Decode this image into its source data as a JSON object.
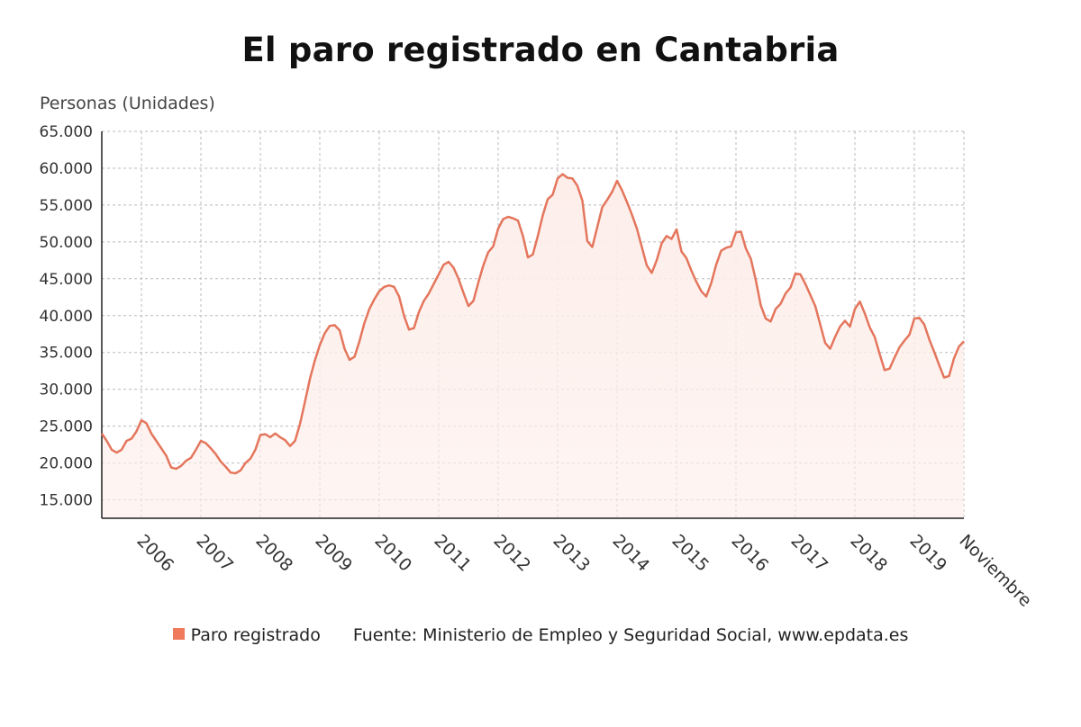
{
  "chart_data": {
    "type": "area",
    "title": "El paro registrado en Cantabria",
    "ylabel": "Personas (Unidades)",
    "xlabel": "",
    "ylim": [
      12500,
      65000
    ],
    "yticks": [
      15000,
      20000,
      25000,
      30000,
      35000,
      40000,
      45000,
      50000,
      55000,
      60000,
      65000
    ],
    "ytick_labels": [
      "15.000",
      "20.000",
      "25.000",
      "30.000",
      "35.000",
      "40.000",
      "45.000",
      "50.000",
      "55.000",
      "60.000",
      "65.000"
    ],
    "xtick_labels": [
      "2006",
      "2007",
      "2008",
      "2009",
      "2010",
      "2011",
      "2012",
      "2013",
      "2014",
      "2015",
      "2016",
      "2017",
      "2018",
      "2019",
      "Noviembre"
    ],
    "xrange": [
      "2005-05",
      "2019-11"
    ],
    "grid": true,
    "line_color": "#e4765d",
    "fill_color": "#fdeeea",
    "series": [
      {
        "name": "Paro registrado",
        "x": [
          "2005-05",
          "2005-06",
          "2005-07",
          "2005-08",
          "2005-09",
          "2005-10",
          "2005-11",
          "2005-12",
          "2006-01",
          "2006-02",
          "2006-03",
          "2006-04",
          "2006-05",
          "2006-06",
          "2006-07",
          "2006-08",
          "2006-09",
          "2006-10",
          "2006-11",
          "2006-12",
          "2007-01",
          "2007-02",
          "2007-03",
          "2007-04",
          "2007-05",
          "2007-06",
          "2007-07",
          "2007-08",
          "2007-09",
          "2007-10",
          "2007-11",
          "2007-12",
          "2008-01",
          "2008-02",
          "2008-03",
          "2008-04",
          "2008-05",
          "2008-06",
          "2008-07",
          "2008-08",
          "2008-09",
          "2008-10",
          "2008-11",
          "2008-12",
          "2009-01",
          "2009-02",
          "2009-03",
          "2009-04",
          "2009-05",
          "2009-06",
          "2009-07",
          "2009-08",
          "2009-09",
          "2009-10",
          "2009-11",
          "2009-12",
          "2010-01",
          "2010-02",
          "2010-03",
          "2010-04",
          "2010-05",
          "2010-06",
          "2010-07",
          "2010-08",
          "2010-09",
          "2010-10",
          "2010-11",
          "2010-12",
          "2011-01",
          "2011-02",
          "2011-03",
          "2011-04",
          "2011-05",
          "2011-06",
          "2011-07",
          "2011-08",
          "2011-09",
          "2011-10",
          "2011-11",
          "2011-12",
          "2012-01",
          "2012-02",
          "2012-03",
          "2012-04",
          "2012-05",
          "2012-06",
          "2012-07",
          "2012-08",
          "2012-09",
          "2012-10",
          "2012-11",
          "2012-12",
          "2013-01",
          "2013-02",
          "2013-03",
          "2013-04",
          "2013-05",
          "2013-06",
          "2013-07",
          "2013-08",
          "2013-09",
          "2013-10",
          "2013-11",
          "2013-12",
          "2014-01",
          "2014-02",
          "2014-03",
          "2014-04",
          "2014-05",
          "2014-06",
          "2014-07",
          "2014-08",
          "2014-09",
          "2014-10",
          "2014-11",
          "2014-12",
          "2015-01",
          "2015-02",
          "2015-03",
          "2015-04",
          "2015-05",
          "2015-06",
          "2015-07",
          "2015-08",
          "2015-09",
          "2015-10",
          "2015-11",
          "2015-12",
          "2016-01",
          "2016-02",
          "2016-03",
          "2016-04",
          "2016-05",
          "2016-06",
          "2016-07",
          "2016-08",
          "2016-09",
          "2016-10",
          "2016-11",
          "2016-12",
          "2017-01",
          "2017-02",
          "2017-03",
          "2017-04",
          "2017-05",
          "2017-06",
          "2017-07",
          "2017-08",
          "2017-09",
          "2017-10",
          "2017-11",
          "2017-12",
          "2018-01",
          "2018-02",
          "2018-03",
          "2018-04",
          "2018-05",
          "2018-06",
          "2018-07",
          "2018-08",
          "2018-09",
          "2018-10",
          "2018-11",
          "2018-12",
          "2019-01",
          "2019-02",
          "2019-03",
          "2019-04",
          "2019-05",
          "2019-06",
          "2019-07",
          "2019-08",
          "2019-09",
          "2019-10",
          "2019-11"
        ],
        "values": [
          24000,
          23000,
          21800,
          21400,
          21800,
          23000,
          23300,
          24300,
          25800,
          25400,
          24000,
          23000,
          22000,
          21000,
          19400,
          19200,
          19600,
          20300,
          20700,
          21800,
          23000,
          22700,
          22000,
          21200,
          20200,
          19500,
          18700,
          18600,
          19000,
          20000,
          20600,
          21800,
          23800,
          23900,
          23500,
          24000,
          23500,
          23100,
          22300,
          23000,
          25300,
          28300,
          31400,
          33900,
          36000,
          37600,
          38600,
          38700,
          38000,
          35500,
          34000,
          34400,
          36500,
          39000,
          40900,
          42200,
          43300,
          43900,
          44100,
          43900,
          42600,
          40000,
          38100,
          38300,
          40500,
          42000,
          43000,
          44300,
          45600,
          46900,
          47300,
          46500,
          45000,
          43100,
          41300,
          42000,
          44500,
          46800,
          48600,
          49400,
          51800,
          53100,
          53400,
          53200,
          52900,
          50800,
          47900,
          48300,
          50800,
          53600,
          55800,
          56400,
          58600,
          59200,
          58700,
          58600,
          57600,
          55600,
          50100,
          49300,
          52000,
          54700,
          55700,
          56800,
          58300,
          57000,
          55400,
          53700,
          51800,
          49300,
          46800,
          45800,
          47500,
          49800,
          50800,
          50400,
          51700,
          48700,
          47800,
          46100,
          44600,
          43300,
          42600,
          44400,
          46900,
          48800,
          49200,
          49400,
          51300,
          51400,
          49100,
          47700,
          44800,
          41400,
          39600,
          39200,
          40900,
          41600,
          43000,
          43800,
          45700,
          45600,
          44300,
          42800,
          41300,
          38800,
          36300,
          35500,
          37100,
          38500,
          39300,
          38500,
          40900,
          41900,
          40300,
          38400,
          37100,
          34800,
          32600,
          32800,
          34300,
          35700,
          36600,
          37400,
          39600,
          39700,
          38800,
          36800,
          35100,
          33300,
          31600,
          31800,
          34200,
          35800,
          36500
        ]
      }
    ],
    "legend": {
      "position": "bottom",
      "label": "Paro registrado"
    },
    "source": "Fuente: Ministerio de Empleo y Seguridad Social, www.epdata.es"
  }
}
